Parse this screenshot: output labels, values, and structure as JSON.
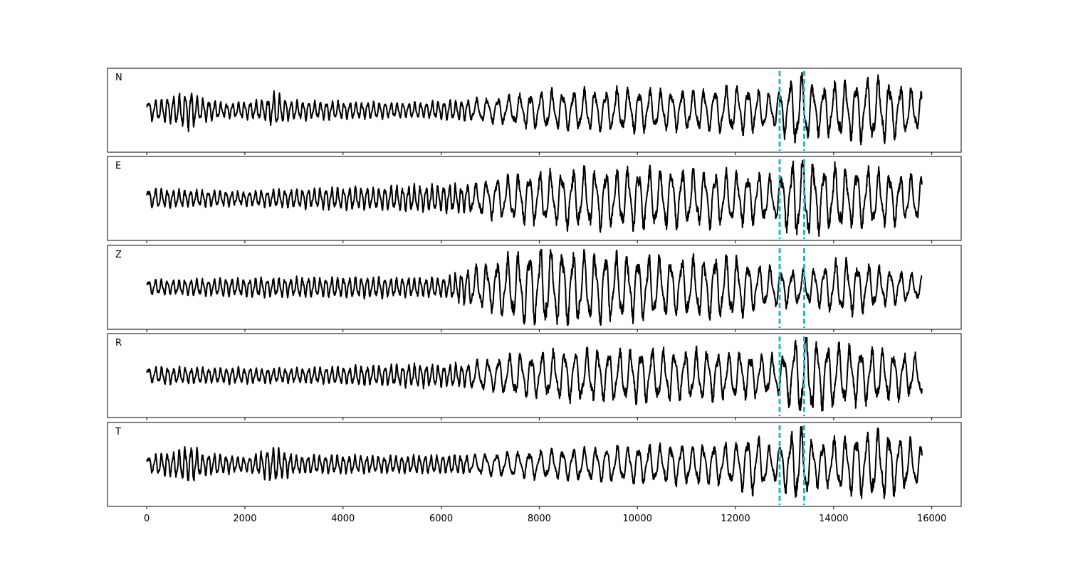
{
  "chart_data": {
    "type": "line",
    "xlim": [
      -800,
      16600
    ],
    "x_ticks": [
      0,
      2000,
      4000,
      6000,
      8000,
      10000,
      12000,
      14000,
      16000
    ],
    "x_tick_labels": [
      "0",
      "2000",
      "4000",
      "6000",
      "8000",
      "10000",
      "12000",
      "14000",
      "16000"
    ],
    "n_samples": 15800,
    "markers": [
      12900,
      13400
    ],
    "marker_color": "#17becf",
    "trace_color": "#000000",
    "grid": false,
    "panels": [
      {
        "label": "N",
        "seed": 11,
        "envelope": [
          [
            0,
            0.2
          ],
          [
            600,
            0.3
          ],
          [
            900,
            0.42
          ],
          [
            1100,
            0.25
          ],
          [
            1600,
            0.15
          ],
          [
            2400,
            0.22
          ],
          [
            2600,
            0.38
          ],
          [
            2900,
            0.2
          ],
          [
            4000,
            0.18
          ],
          [
            5500,
            0.16
          ],
          [
            6600,
            0.22
          ],
          [
            7400,
            0.3
          ],
          [
            8000,
            0.4
          ],
          [
            9500,
            0.45
          ],
          [
            11000,
            0.42
          ],
          [
            12200,
            0.5
          ],
          [
            12800,
            0.35
          ],
          [
            13300,
            0.8
          ],
          [
            13600,
            0.5
          ],
          [
            14900,
            0.7
          ],
          [
            15800,
            0.4
          ]
        ]
      },
      {
        "label": "E",
        "seed": 23,
        "envelope": [
          [
            0,
            0.2
          ],
          [
            2000,
            0.15
          ],
          [
            3000,
            0.2
          ],
          [
            5000,
            0.25
          ],
          [
            6500,
            0.3
          ],
          [
            7500,
            0.5
          ],
          [
            8500,
            0.6
          ],
          [
            10000,
            0.65
          ],
          [
            12000,
            0.55
          ],
          [
            12900,
            0.5
          ],
          [
            13300,
            0.95
          ],
          [
            13700,
            0.7
          ],
          [
            15000,
            0.6
          ],
          [
            15800,
            0.45
          ]
        ]
      },
      {
        "label": "Z",
        "seed": 37,
        "envelope": [
          [
            0,
            0.15
          ],
          [
            2500,
            0.2
          ],
          [
            4000,
            0.22
          ],
          [
            6000,
            0.2
          ],
          [
            6600,
            0.4
          ],
          [
            7200,
            0.6
          ],
          [
            8000,
            0.85
          ],
          [
            9500,
            0.7
          ],
          [
            11000,
            0.6
          ],
          [
            11800,
            0.7
          ],
          [
            12500,
            0.45
          ],
          [
            13400,
            0.35
          ],
          [
            14200,
            0.6
          ],
          [
            15000,
            0.4
          ],
          [
            15800,
            0.25
          ]
        ]
      },
      {
        "label": "R",
        "seed": 51,
        "envelope": [
          [
            0,
            0.18
          ],
          [
            3000,
            0.15
          ],
          [
            5000,
            0.22
          ],
          [
            6500,
            0.25
          ],
          [
            7500,
            0.45
          ],
          [
            9000,
            0.55
          ],
          [
            10500,
            0.55
          ],
          [
            12000,
            0.5
          ],
          [
            12900,
            0.4
          ],
          [
            13400,
            0.95
          ],
          [
            13700,
            0.7
          ],
          [
            15000,
            0.55
          ],
          [
            15800,
            0.4
          ]
        ]
      },
      {
        "label": "T",
        "seed": 67,
        "envelope": [
          [
            0,
            0.18
          ],
          [
            600,
            0.28
          ],
          [
            900,
            0.45
          ],
          [
            1100,
            0.25
          ],
          [
            2000,
            0.15
          ],
          [
            2600,
            0.38
          ],
          [
            3000,
            0.2
          ],
          [
            5000,
            0.18
          ],
          [
            6500,
            0.2
          ],
          [
            8000,
            0.3
          ],
          [
            10000,
            0.4
          ],
          [
            12000,
            0.45
          ],
          [
            12300,
            0.65
          ],
          [
            12800,
            0.35
          ],
          [
            13300,
            0.85
          ],
          [
            13600,
            0.45
          ],
          [
            15000,
            0.75
          ],
          [
            15800,
            0.4
          ]
        ]
      }
    ]
  }
}
